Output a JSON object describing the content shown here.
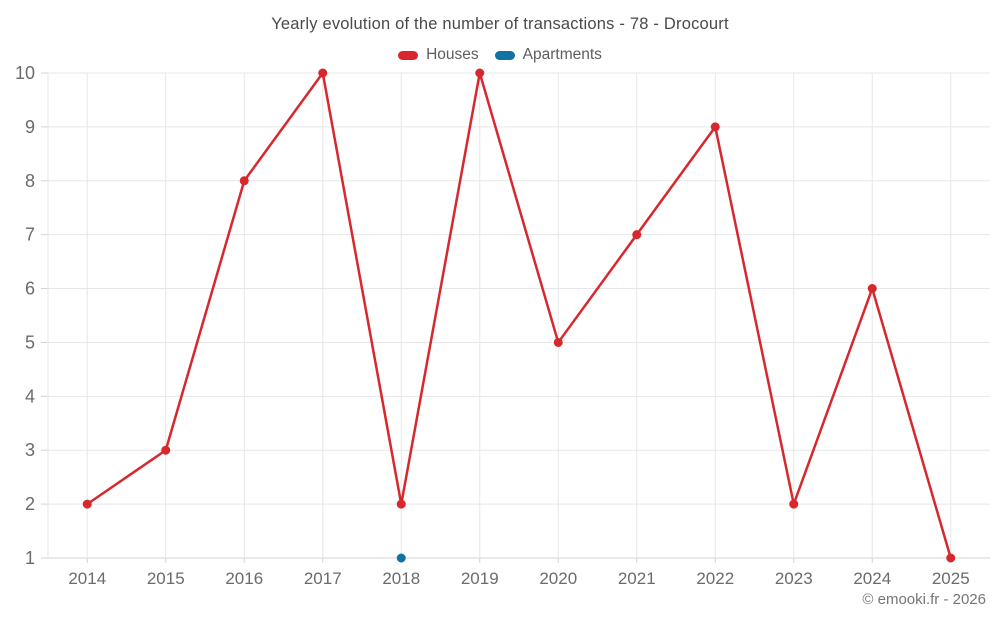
{
  "title": "Yearly evolution of the number of transactions - 78 - Drocourt",
  "legend": {
    "items": [
      {
        "label": "Houses",
        "color": "#d7282e"
      },
      {
        "label": "Apartments",
        "color": "#1272a3"
      }
    ]
  },
  "chart_data": {
    "type": "line",
    "title": "Yearly evolution of the number of transactions - 78 - Drocourt",
    "categories": [
      "2014",
      "2015",
      "2016",
      "2017",
      "2018",
      "2019",
      "2020",
      "2021",
      "2022",
      "2023",
      "2024",
      "2025"
    ],
    "series": [
      {
        "name": "Houses",
        "color": "#d7282e",
        "values": [
          2,
          3,
          8,
          10,
          2,
          10,
          5,
          7,
          9,
          2,
          6,
          1
        ]
      },
      {
        "name": "Apartments",
        "color": "#1272a3",
        "values": [
          null,
          null,
          null,
          null,
          1,
          null,
          null,
          null,
          null,
          null,
          null,
          null
        ]
      }
    ],
    "xlabel": "",
    "ylabel": "",
    "ylim": [
      1,
      10
    ],
    "yticks": [
      1,
      2,
      3,
      4,
      5,
      6,
      7,
      8,
      9,
      10
    ],
    "grid": true,
    "legend_position": "top"
  },
  "footer": {
    "credit": "© emooki.fr - 2026"
  },
  "colors": {
    "background": "#ffffff",
    "grid": "#e7e7e7",
    "axis": "#d4d4d4",
    "tick_text": "#6b6b6b",
    "title_text": "#4a4a4a",
    "legend_text": "#5e5e5e",
    "footer_text": "#757575"
  }
}
